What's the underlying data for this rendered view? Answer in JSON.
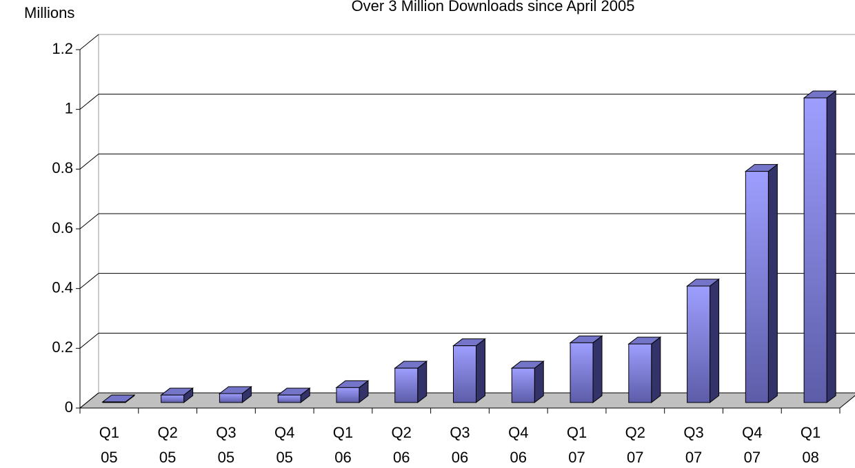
{
  "chart_data": {
    "type": "bar3d",
    "title": "Over 3 Million Downloads since April 2005",
    "y_label": "Millions",
    "categories": [
      "Q1\n05",
      "Q2\n05",
      "Q3\n05",
      "Q4\n05",
      "Q1\n06",
      "Q2\n06",
      "Q3\n06",
      "Q4\n06",
      "Q1\n07",
      "Q2\n07",
      "Q3\n07",
      "Q4\n07",
      "Q1\n08"
    ],
    "values": [
      0.002,
      0.025,
      0.03,
      0.025,
      0.05,
      0.115,
      0.19,
      0.115,
      0.2,
      0.196,
      0.39,
      0.774,
      1.02
    ],
    "color": "#8c8cf0",
    "ylim": [
      0,
      1.2
    ],
    "yticks": [
      0,
      0.2,
      0.4,
      0.6,
      0.8,
      1,
      1.2
    ],
    "grid": true
  }
}
